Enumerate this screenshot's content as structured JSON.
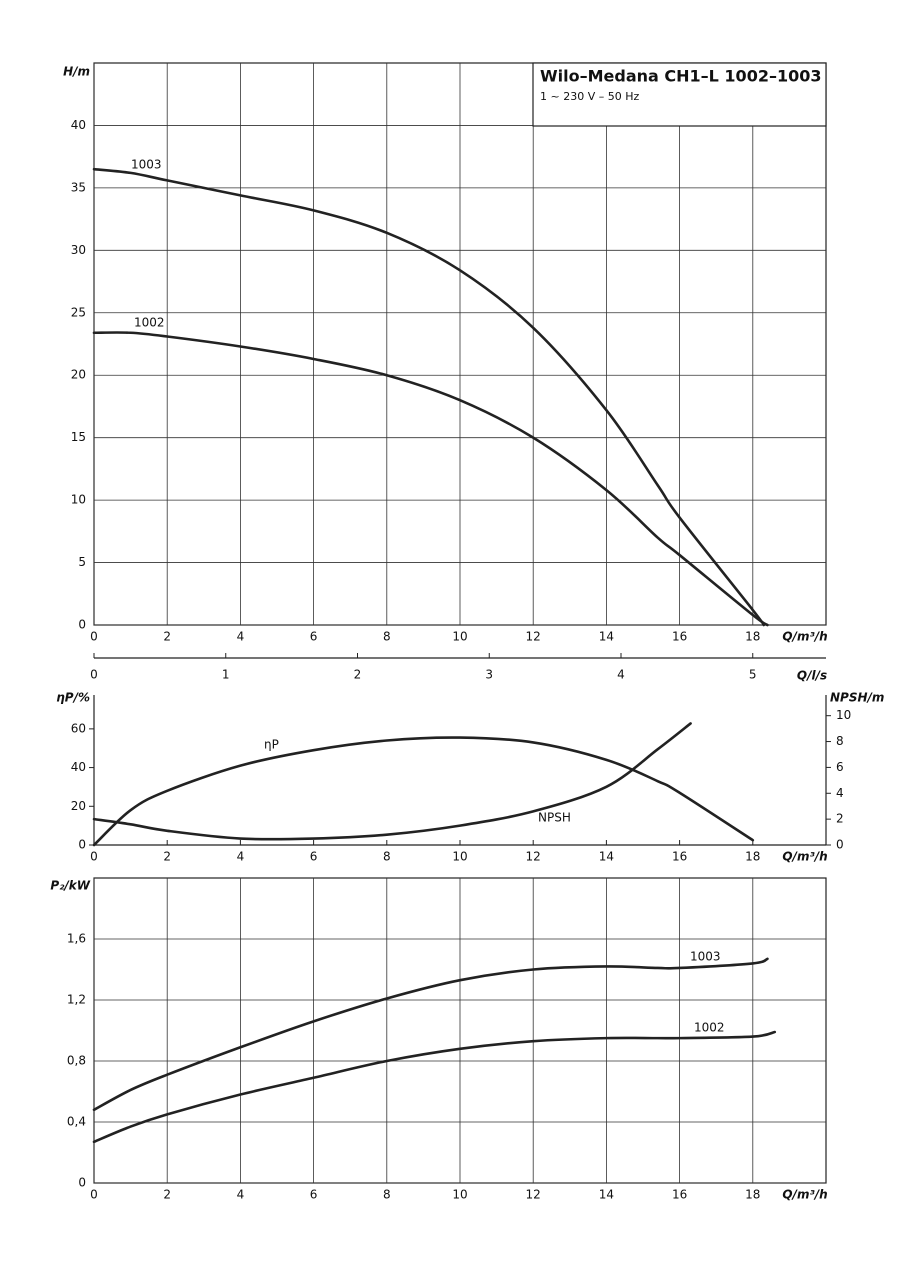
{
  "chart_data": [
    {
      "type": "line",
      "title": "Wilo–Medana CH1–L 1002–1003",
      "subtitle": "1 ~ 230 V – 50 Hz",
      "ylabel": "H/m",
      "xlabel": "Q/m³/h",
      "x2label": "Q/l/s",
      "xlim": [
        0,
        20
      ],
      "xticks": [
        0,
        2,
        4,
        6,
        8,
        10,
        12,
        14,
        16,
        18
      ],
      "ylim": [
        0,
        45
      ],
      "yticks": [
        0,
        5,
        10,
        15,
        20,
        25,
        30,
        35,
        40
      ],
      "x2lim": [
        0,
        5.556
      ],
      "x2ticks": [
        0,
        1,
        2,
        3,
        4,
        5
      ],
      "grid": true,
      "series": [
        {
          "name": "1003",
          "color": "#222222",
          "x": [
            0,
            1,
            2,
            4,
            6,
            8,
            10,
            12,
            14,
            15.4,
            16,
            18,
            18.3
          ],
          "values": [
            36.5,
            36.2,
            35.6,
            34.4,
            33.2,
            31.4,
            28.4,
            23.8,
            17.2,
            11.2,
            8.6,
            1.2,
            0
          ]
        },
        {
          "name": "1002",
          "color": "#222222",
          "x": [
            0,
            1,
            2,
            4,
            6,
            8,
            10,
            12,
            14,
            15.4,
            16,
            18,
            18.4
          ],
          "values": [
            23.4,
            23.4,
            23.1,
            22.3,
            21.3,
            20,
            18,
            15,
            10.8,
            7,
            5.6,
            0.8,
            0
          ]
        }
      ]
    },
    {
      "type": "line",
      "ylabel": "ηP/%",
      "y2label": "NPSH/m",
      "xlabel": "Q/m³/h",
      "xlim": [
        0,
        20
      ],
      "xticks": [
        0,
        2,
        4,
        6,
        8,
        10,
        12,
        14,
        16,
        18
      ],
      "ylim": [
        0,
        77.5
      ],
      "yticks": [
        0,
        20,
        40,
        60
      ],
      "y2lim": [
        0,
        11.6
      ],
      "y2ticks": [
        0,
        2,
        4,
        6,
        8,
        10
      ],
      "grid": false,
      "series": [
        {
          "name": "ηP",
          "color": "#222222",
          "x": [
            0,
            1,
            2,
            4,
            6,
            8,
            10,
            12,
            14,
            15.4,
            16,
            18
          ],
          "values": [
            0,
            18,
            28,
            41,
            49,
            54,
            55.5,
            53,
            44,
            33,
            27,
            2.5
          ]
        },
        {
          "name": "NPSH",
          "color": "#222222",
          "axis": "y2",
          "x": [
            0,
            1,
            2,
            4,
            6,
            8,
            10,
            12,
            14,
            15.4,
            16.3
          ],
          "values": [
            2,
            1.6,
            1.1,
            0.5,
            0.5,
            0.8,
            1.5,
            2.6,
            4.5,
            7.4,
            9.4
          ]
        }
      ]
    },
    {
      "type": "line",
      "ylabel": "P₂/kW",
      "xlabel": "Q/m³/h",
      "xlim": [
        0,
        20
      ],
      "xticks": [
        0,
        2,
        4,
        6,
        8,
        10,
        12,
        14,
        16,
        18
      ],
      "ylim": [
        0,
        2
      ],
      "yticks": [
        0,
        {
          "value": 0.4,
          "label": "0,4"
        },
        {
          "value": 0.8,
          "label": "0,8"
        },
        {
          "value": 1.2,
          "label": "1,2"
        },
        {
          "value": 1.6,
          "label": "1,6"
        }
      ],
      "grid": true,
      "series": [
        {
          "name": "1003",
          "color": "#222222",
          "x": [
            0,
            1,
            2,
            4,
            6,
            8,
            10,
            12,
            14,
            15.4,
            16,
            18,
            18.4
          ],
          "values": [
            0.48,
            0.61,
            0.71,
            0.89,
            1.06,
            1.21,
            1.33,
            1.4,
            1.42,
            1.41,
            1.41,
            1.44,
            1.47
          ]
        },
        {
          "name": "1002",
          "color": "#222222",
          "x": [
            0,
            1,
            2,
            4,
            6,
            8,
            10,
            12,
            14,
            15.4,
            16,
            18,
            18.6
          ],
          "values": [
            0.27,
            0.37,
            0.45,
            0.58,
            0.69,
            0.8,
            0.88,
            0.93,
            0.95,
            0.95,
            0.95,
            0.96,
            0.99
          ]
        }
      ]
    }
  ]
}
